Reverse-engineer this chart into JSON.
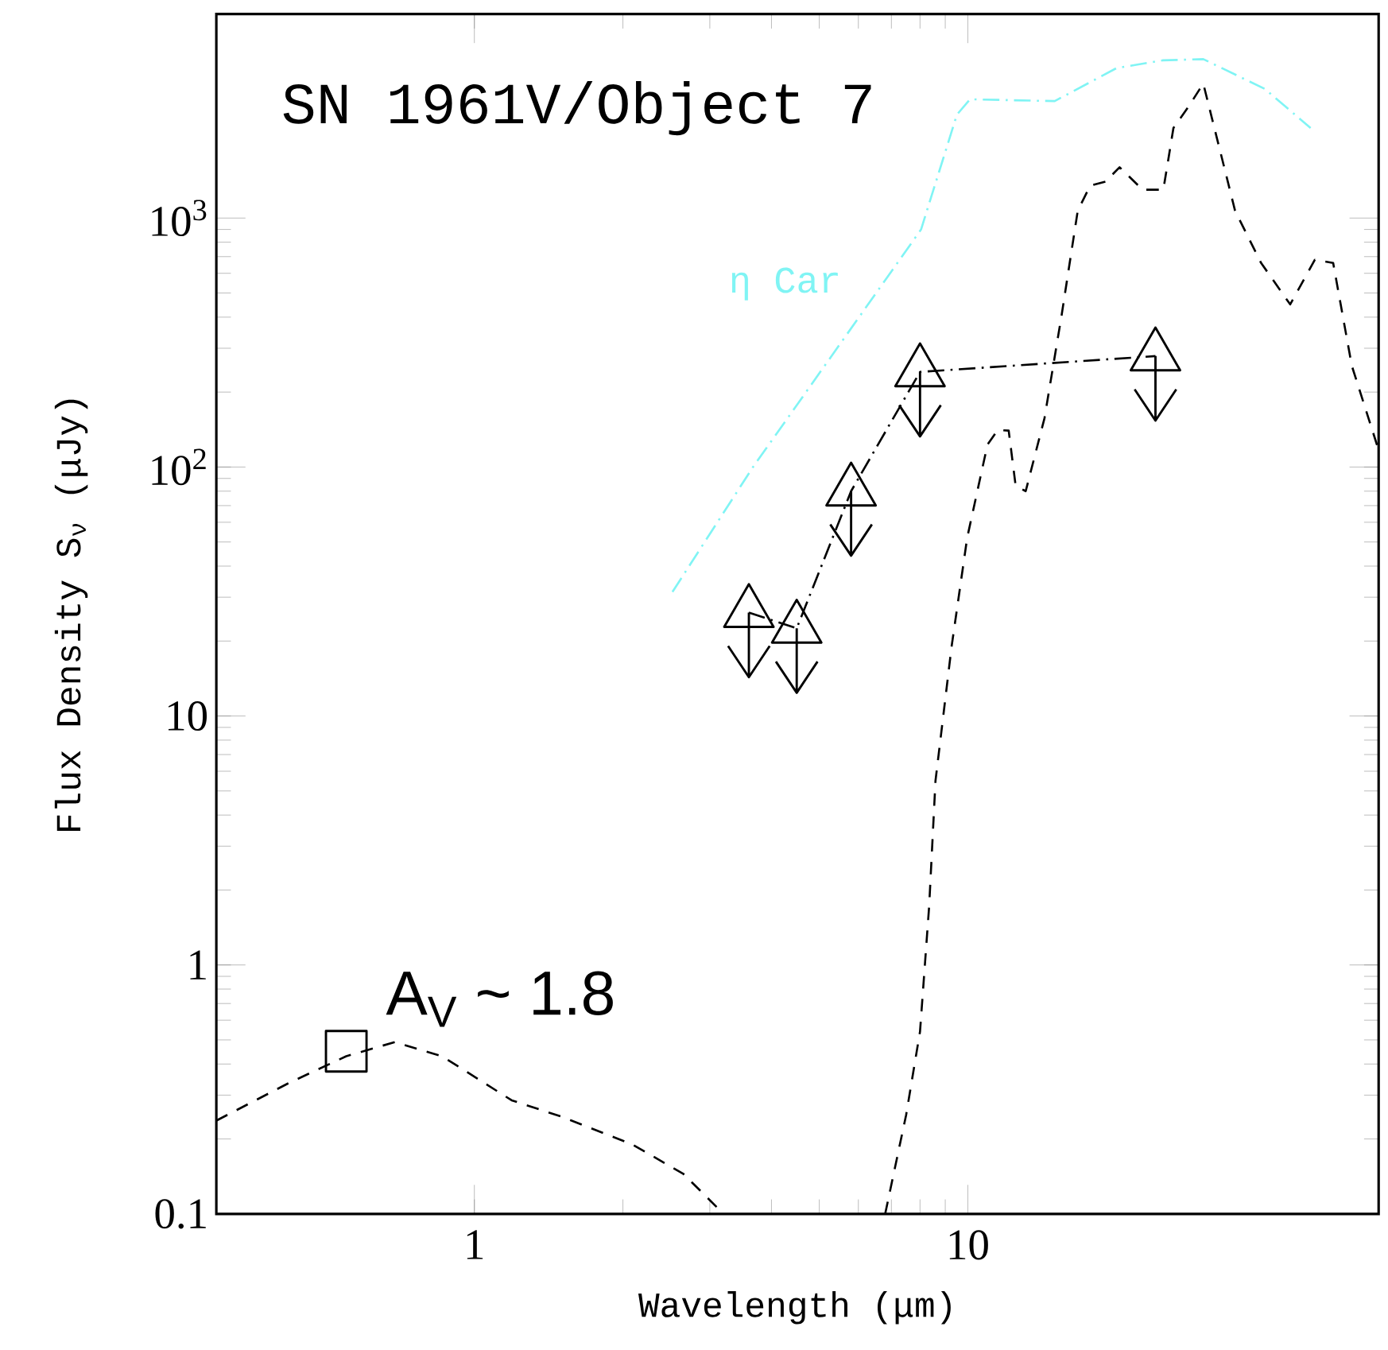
{
  "chart_data": {
    "type": "line",
    "title": "SN 1961V/Object 7",
    "xlabel": "Wavelength (μm)",
    "ylabel": "Flux Density S$_{ν}$ (μJy)",
    "log": "xy",
    "xlim": [
      0.3,
      68
    ],
    "ylim": [
      0.1,
      6600
    ],
    "xticks": [
      1,
      10
    ],
    "yticks": [
      0.1,
      1,
      10,
      {
        "value": 100,
        "label": "10$^{2}$"
      },
      {
        "value": 1000,
        "label": "10$^{3}$"
      }
    ],
    "annotations": [
      "A$_{V}$ ~ 1.8"
    ],
    "series": [
      {
        "type": "line",
        "color": "#000000",
        "line_style": "dashed",
        "x": [
          0.3,
          0.42,
          0.55,
          0.69,
          0.86,
          1.19,
          1.51,
          2.09,
          2.65,
          3.2
        ],
        "values": [
          0.237,
          0.335,
          0.43,
          0.49,
          0.43,
          0.286,
          0.245,
          0.19,
          0.145,
          0.1
        ]
      },
      {
        "type": "line",
        "color": "#000000",
        "line_style": "dashed",
        "x": [
          6.8,
          7.5,
          8.0,
          8.35,
          8.6,
          9.27,
          9.97,
          10.96,
          11.5,
          12.1,
          12.5,
          13.1,
          14.3,
          15.5,
          16.7,
          17.7,
          19.0,
          20.3,
          22.6,
          24.9,
          26.1,
          28,
          30,
          34.8,
          39.3,
          45,
          50.5,
          55,
          60,
          68
        ],
        "values": [
          0.1,
          0.25,
          0.54,
          1.73,
          5.5,
          19,
          52,
          123,
          141,
          140,
          84,
          80,
          157,
          410,
          1070,
          1350,
          1400,
          1600,
          1300,
          1300,
          2300,
          2800,
          3470,
          1070,
          660,
          450,
          680,
          660,
          255,
          117
        ]
      },
      {
        "type": "line",
        "name": "η Car",
        "color": "#80f4f4",
        "line_style": "dashdot",
        "x": [
          2.52,
          3.67,
          8.04,
          9.5,
          10.1,
          15.0,
          20.0,
          24.8,
          30,
          40,
          49.5
        ],
        "values": [
          31.5,
          100,
          900,
          2600,
          3000,
          2950,
          4000,
          4300,
          4350,
          3300,
          2300
        ]
      },
      {
        "type": "line",
        "color": "#000000",
        "line_style": "dashdot",
        "marker": "triangle",
        "x": [
          3.6,
          4.5,
          5.8,
          8.0,
          24
        ],
        "values": [
          26,
          22.5,
          80,
          241,
          279
        ]
      },
      {
        "type": "scatter",
        "color": "#000000",
        "marker": "square",
        "x": [
          0.55
        ],
        "values": [
          0.45
        ]
      }
    ]
  }
}
